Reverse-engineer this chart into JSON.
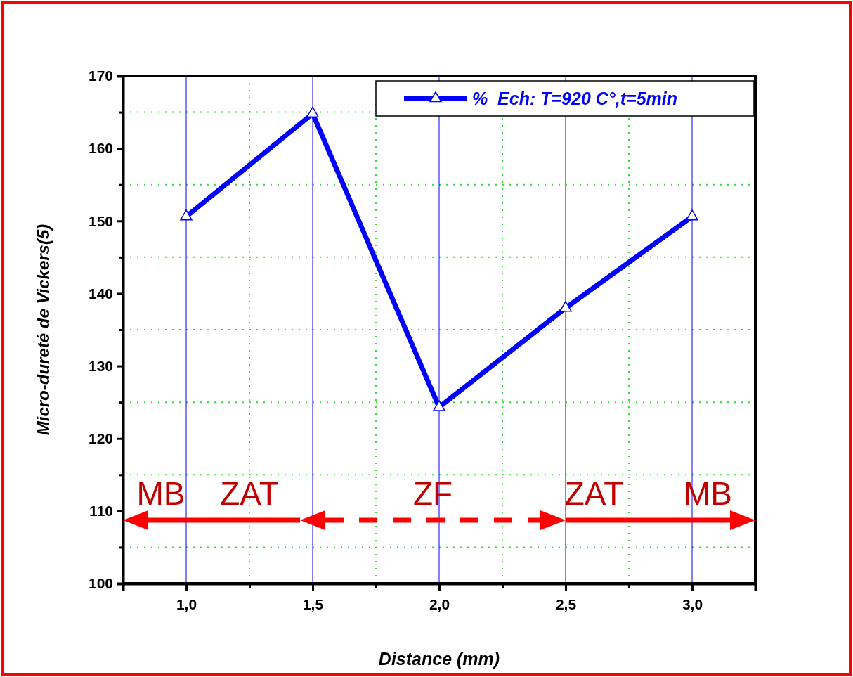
{
  "chart_data": {
    "type": "line",
    "xlabel": "Distance (mm)",
    "ylabel": "Micro-dureté de Vickers(5)",
    "x": [
      1.0,
      1.5,
      2.0,
      2.5,
      3.0
    ],
    "series": [
      {
        "name": "%  Ech: T=920 C°,t=5min",
        "color": "#0000ff",
        "values": [
          150.6,
          164.8,
          124.3,
          138.0,
          150.6
        ]
      }
    ],
    "xlim": [
      0.75,
      3.25
    ],
    "xticks": [
      {
        "value": 0.75,
        "label": null
      },
      {
        "value": 1.0,
        "label": "1,0"
      },
      {
        "value": 1.25,
        "label": null
      },
      {
        "value": 1.5,
        "label": "1,5"
      },
      {
        "value": 1.75,
        "label": null
      },
      {
        "value": 2.0,
        "label": "2,0"
      },
      {
        "value": 2.25,
        "label": null
      },
      {
        "value": 2.5,
        "label": "2,5"
      },
      {
        "value": 2.75,
        "label": null
      },
      {
        "value": 3.0,
        "label": "3,0"
      }
    ],
    "ylim": [
      100,
      170
    ],
    "yticks": [
      100,
      {
        "value": 105,
        "label": null
      },
      110,
      {
        "value": 115,
        "label": null
      },
      120,
      {
        "value": 125,
        "label": null
      },
      130,
      {
        "value": 135,
        "label": null
      },
      140,
      {
        "value": 145,
        "label": null
      },
      150,
      {
        "value": 155,
        "label": null
      },
      160,
      {
        "value": 165,
        "label": null
      },
      170
    ],
    "grid": true,
    "legend": "top right",
    "marker": "triangle",
    "line_style": "solid",
    "annotations": [
      "MB",
      "ZAT",
      "ZF",
      "ZAT",
      "MB"
    ]
  }
}
